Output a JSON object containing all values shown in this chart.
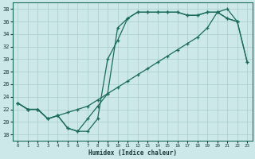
{
  "xlabel": "Humidex (Indice chaleur)",
  "xlim": [
    -0.5,
    23.5
  ],
  "ylim": [
    17,
    39
  ],
  "yticks": [
    18,
    20,
    22,
    24,
    26,
    28,
    30,
    32,
    34,
    36,
    38
  ],
  "xticks": [
    0,
    1,
    2,
    3,
    4,
    5,
    6,
    7,
    8,
    9,
    10,
    11,
    12,
    13,
    14,
    15,
    16,
    17,
    18,
    19,
    20,
    21,
    22,
    23
  ],
  "bg_color": "#cce8e8",
  "grid_color": "#a8cccc",
  "line_color": "#1a6b5a",
  "curve1_x": [
    0,
    1,
    2,
    3,
    4,
    5,
    6,
    7,
    8,
    9,
    10,
    11,
    12,
    13,
    14,
    15,
    16,
    17,
    18,
    19,
    20,
    21,
    22,
    23
  ],
  "curve1_y": [
    23.0,
    22.0,
    22.0,
    20.5,
    21.0,
    21.5,
    22.0,
    22.5,
    23.5,
    24.5,
    25.5,
    26.5,
    27.5,
    28.5,
    29.5,
    30.5,
    31.5,
    32.5,
    33.5,
    35.0,
    37.5,
    38.0,
    36.0,
    29.5
  ],
  "curve2_x": [
    0,
    1,
    2,
    3,
    4,
    5,
    6,
    7,
    8,
    9,
    10,
    11,
    12,
    13,
    14,
    15,
    16,
    17,
    18,
    19,
    20,
    21,
    22
  ],
  "curve2_y": [
    23.0,
    22.0,
    22.0,
    20.5,
    21.0,
    19.0,
    18.5,
    20.5,
    22.5,
    24.5,
    35.0,
    36.5,
    37.5,
    37.5,
    37.5,
    37.5,
    37.5,
    37.0,
    37.0,
    37.5,
    37.5,
    36.5,
    36.0
  ],
  "curve3_x": [
    0,
    1,
    2,
    3,
    4,
    5,
    6,
    7,
    8,
    9,
    10,
    11,
    12,
    13,
    14,
    15,
    16,
    17,
    18,
    19,
    20,
    21,
    22,
    23
  ],
  "curve3_y": [
    23.0,
    22.0,
    22.0,
    20.5,
    21.0,
    19.0,
    18.5,
    18.5,
    20.5,
    30.0,
    33.0,
    36.5,
    37.5,
    37.5,
    37.5,
    37.5,
    37.5,
    37.0,
    37.0,
    37.5,
    37.5,
    36.5,
    36.0,
    29.5
  ]
}
